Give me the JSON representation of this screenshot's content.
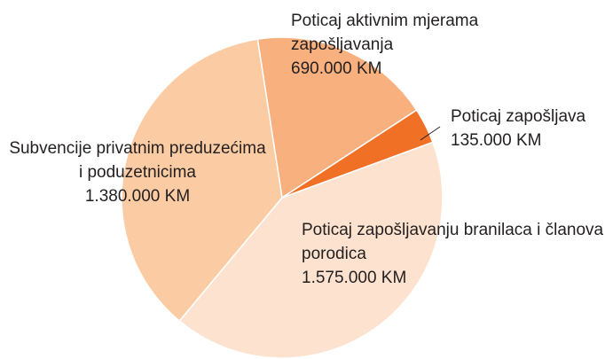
{
  "chart_data": {
    "type": "pie",
    "categories": [
      "Poticaj aktivnim mjerama zapošljavanja",
      "Poticaj zapošljava",
      "Poticaj zapošljavanju branilaca i članova porodica",
      "Subvencije privatnim preduzećima i poduzetnicima"
    ],
    "values": [
      690000,
      135000,
      1575000,
      1380000
    ],
    "value_labels": [
      "690.000 KM",
      "135.000 KM",
      "1.575.000 KM",
      "1.380.000 KM"
    ],
    "colors": [
      "#f7b07e",
      "#f07126",
      "#fde3cf",
      "#fbcba3"
    ]
  }
}
